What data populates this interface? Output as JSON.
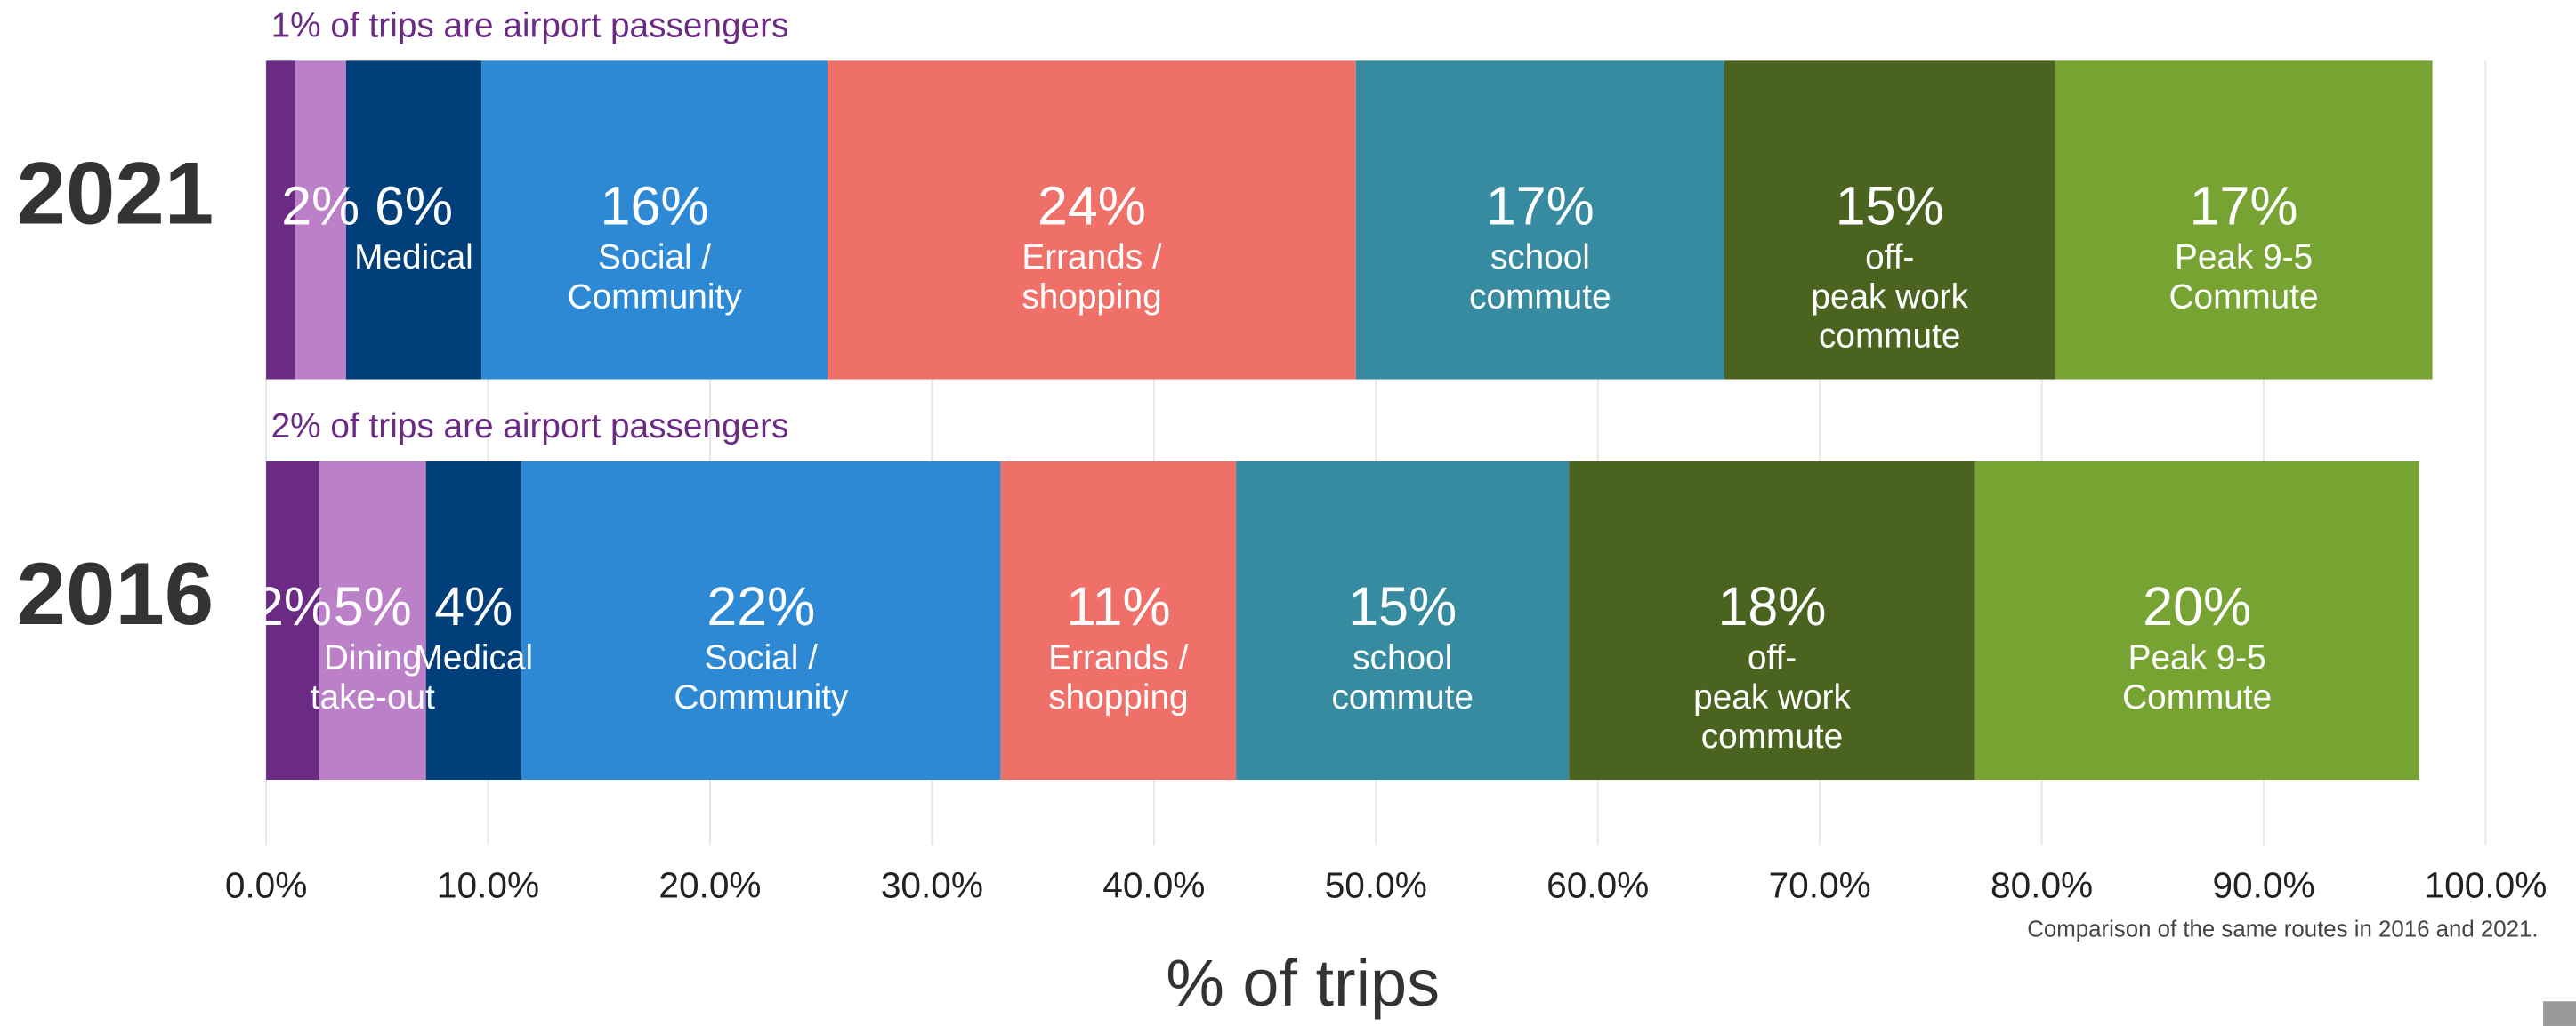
{
  "chart_data": {
    "type": "stacked_bar_horizontal",
    "xlabel": "% of trips",
    "note": "Comparison of the same routes in 2016 and 2021.",
    "xlim": [
      0,
      100
    ],
    "xticks": [
      {
        "value": 0,
        "label": "0.0%"
      },
      {
        "value": 10,
        "label": "10.0%"
      },
      {
        "value": 20,
        "label": "20.0%"
      },
      {
        "value": 30,
        "label": "30.0%"
      },
      {
        "value": 40,
        "label": "40.0%"
      },
      {
        "value": 50,
        "label": "50.0%"
      },
      {
        "value": 60,
        "label": "60.0%"
      },
      {
        "value": 70,
        "label": "70.0%"
      },
      {
        "value": 80,
        "label": "80.0%"
      },
      {
        "value": 90,
        "label": "90.0%"
      },
      {
        "value": 100,
        "label": "100.0%"
      }
    ],
    "grid": true,
    "bars": [
      {
        "label": "2021",
        "annotation": "1% of trips are airport passengers",
        "segments": [
          {
            "name_lines": [],
            "value": 1.3,
            "value_label": null,
            "color": "#6b2a84"
          },
          {
            "name_lines": [],
            "value": 2.3,
            "value_label": "2%",
            "color": "#bb80c8"
          },
          {
            "name_lines": [
              "Medical"
            ],
            "value": 6.1,
            "value_label": "6%",
            "color": "#003f7a"
          },
          {
            "name_lines": [
              "Social /",
              "Community"
            ],
            "value": 15.6,
            "value_label": "16%",
            "color": "#2e89d5"
          },
          {
            "name_lines": [
              "Errands /",
              "shopping"
            ],
            "value": 23.8,
            "value_label": "24%",
            "color": "#ef7068"
          },
          {
            "name_lines": [
              "school",
              "commute"
            ],
            "value": 16.6,
            "value_label": "17%",
            "color": "#368ba0"
          },
          {
            "name_lines": [
              "off-",
              "peak work",
              "commute"
            ],
            "value": 14.9,
            "value_label": "15%",
            "color": "#4a6420"
          },
          {
            "name_lines": [
              "Peak 9-5",
              "Commute"
            ],
            "value": 17.0,
            "value_label": "17%",
            "color": "#77a333"
          }
        ]
      },
      {
        "label": "2016",
        "annotation": "2% of trips are airport passengers",
        "segments": [
          {
            "name_lines": [],
            "value": 2.4,
            "value_label": "2%",
            "color": "#6b2a84"
          },
          {
            "name_lines": [
              "Dining",
              "take-out"
            ],
            "value": 4.8,
            "value_label": "5%",
            "color": "#bb80c8"
          },
          {
            "name_lines": [
              "Medical"
            ],
            "value": 4.3,
            "value_label": "4%",
            "color": "#003f7a"
          },
          {
            "name_lines": [
              "Social /",
              "Community"
            ],
            "value": 21.6,
            "value_label": "22%",
            "color": "#2e89d5"
          },
          {
            "name_lines": [
              "Errands /",
              "shopping"
            ],
            "value": 10.6,
            "value_label": "11%",
            "color": "#ef7068"
          },
          {
            "name_lines": [
              "school",
              "commute"
            ],
            "value": 15.0,
            "value_label": "15%",
            "color": "#368ba0"
          },
          {
            "name_lines": [
              "off-",
              "peak work",
              "commute"
            ],
            "value": 18.3,
            "value_label": "18%",
            "color": "#4a6420"
          },
          {
            "name_lines": [
              "Peak 9-5",
              "Commute"
            ],
            "value": 20.0,
            "value_label": "20%",
            "color": "#77a333"
          }
        ]
      }
    ]
  }
}
